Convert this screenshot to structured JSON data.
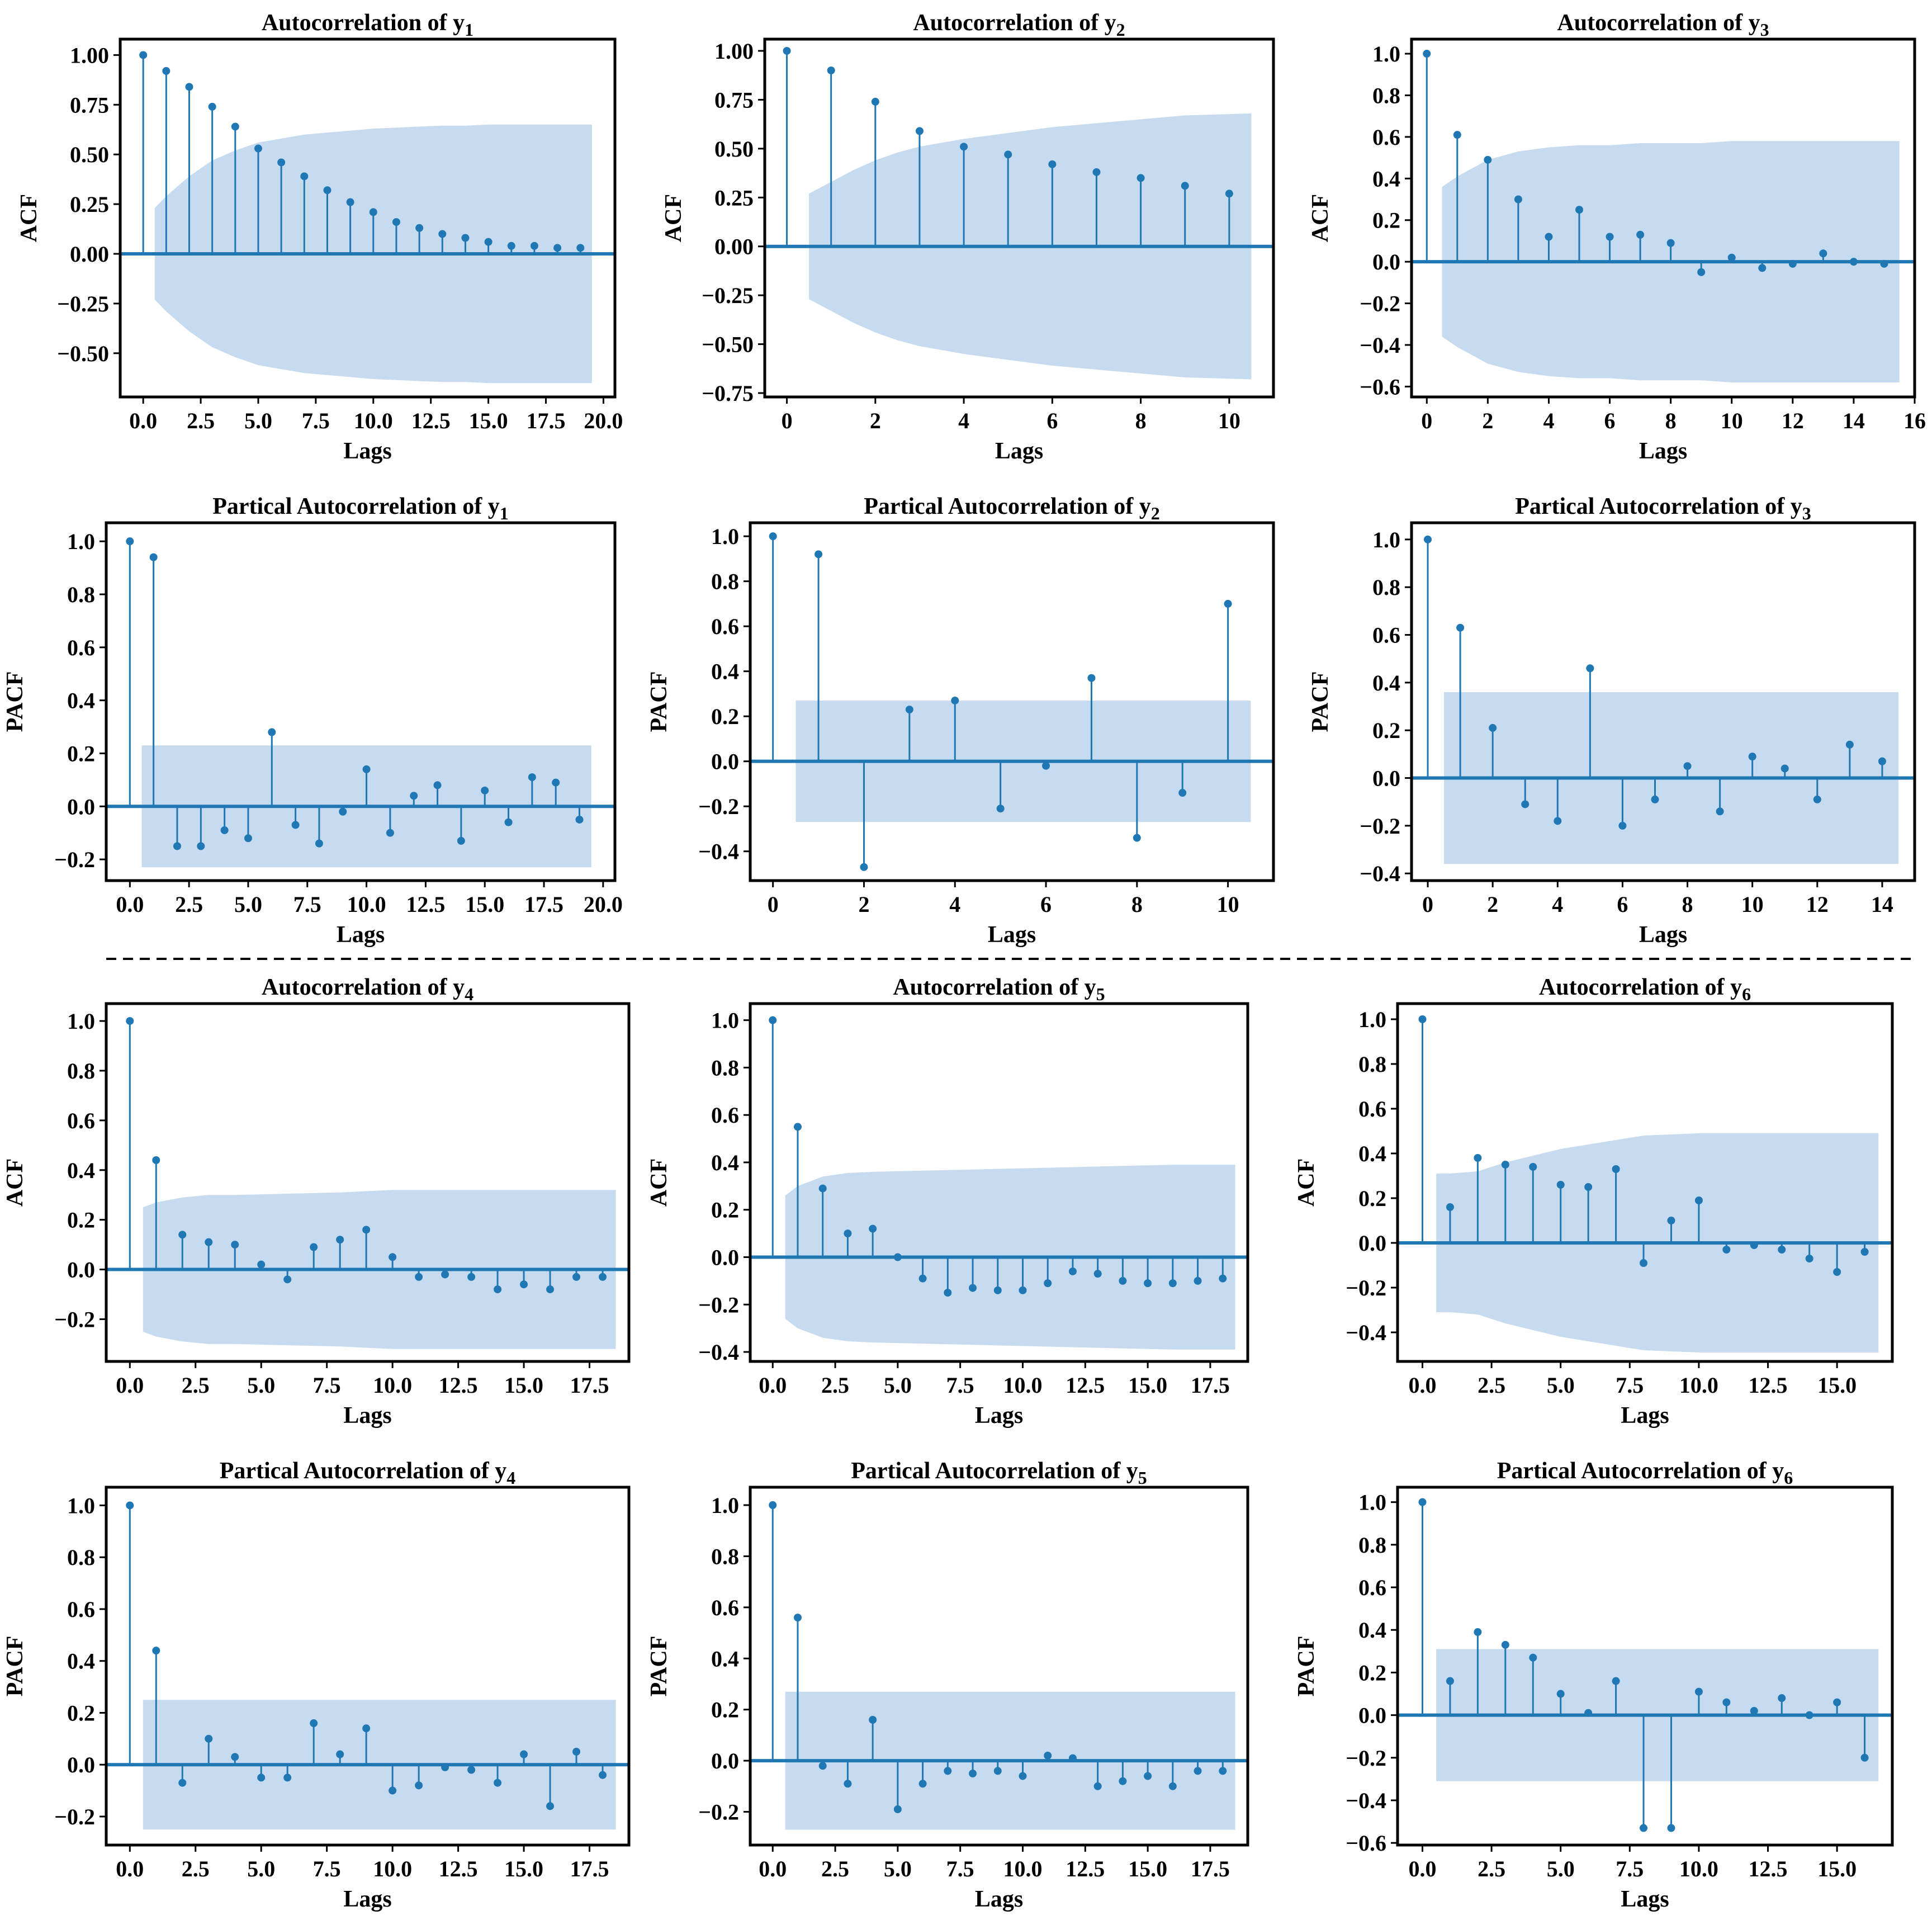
{
  "figure": {
    "separator": "dashed-line",
    "colors": {
      "stem": "#1f77b4",
      "band": "#c6dbef",
      "axis": "#000000"
    }
  },
  "chart_data": [
    {
      "id": "acf1",
      "type": "stem",
      "title": "Autocorrelation of y",
      "subscript": "1",
      "xlabel": "Lags",
      "ylabel": "ACF",
      "x": [
        0,
        1,
        2,
        3,
        4,
        5,
        6,
        7,
        8,
        9,
        10,
        11,
        12,
        13,
        14,
        15,
        16,
        17,
        18,
        19
      ],
      "values": [
        1.0,
        0.92,
        0.84,
        0.74,
        0.64,
        0.53,
        0.46,
        0.39,
        0.32,
        0.26,
        0.21,
        0.16,
        0.13,
        0.1,
        0.08,
        0.06,
        0.04,
        0.04,
        0.03,
        0.03
      ],
      "band_x": [
        0.5,
        1,
        1.5,
        2,
        2.5,
        3,
        4,
        5,
        6,
        7,
        8,
        9,
        10,
        11,
        12,
        13,
        14,
        15,
        16,
        17,
        18,
        19.5
      ],
      "band_upper": [
        0.23,
        0.29,
        0.34,
        0.39,
        0.43,
        0.47,
        0.52,
        0.56,
        0.58,
        0.6,
        0.61,
        0.62,
        0.63,
        0.635,
        0.64,
        0.645,
        0.645,
        0.65,
        0.65,
        0.65,
        0.65,
        0.65
      ],
      "xlim": [
        -1,
        20.5
      ],
      "ylim": [
        -0.72,
        1.08
      ],
      "xticks": [
        0,
        2.5,
        5,
        7.5,
        10,
        12.5,
        15,
        17.5,
        20
      ],
      "xtick_labels": [
        "0.0",
        "2.5",
        "5.0",
        "7.5",
        "10.0",
        "12.5",
        "15.0",
        "17.5",
        "20.0"
      ],
      "yticks": [
        -0.5,
        -0.25,
        0,
        0.25,
        0.5,
        0.75,
        1
      ],
      "ytick_labels": [
        "−0.50",
        "−0.25",
        "0.00",
        "0.25",
        "0.50",
        "0.75",
        "1.00"
      ]
    },
    {
      "id": "acf2",
      "type": "stem",
      "title": "Autocorrelation of y",
      "subscript": "2",
      "xlabel": "Lags",
      "ylabel": "ACF",
      "x": [
        0,
        1,
        2,
        3,
        4,
        5,
        6,
        7,
        8,
        9,
        10
      ],
      "values": [
        1.0,
        0.9,
        0.74,
        0.59,
        0.51,
        0.47,
        0.42,
        0.38,
        0.35,
        0.31,
        0.27
      ],
      "band_x": [
        0.5,
        1,
        1.5,
        2,
        2.5,
        3,
        4,
        5,
        6,
        7,
        8,
        9,
        10.5
      ],
      "band_upper": [
        0.27,
        0.33,
        0.39,
        0.44,
        0.48,
        0.51,
        0.55,
        0.58,
        0.61,
        0.63,
        0.65,
        0.67,
        0.68
      ],
      "xlim": [
        -0.5,
        11
      ],
      "ylim": [
        -0.77,
        1.06
      ],
      "xticks": [
        0,
        2,
        4,
        6,
        8,
        10
      ],
      "xtick_labels": [
        "0",
        "2",
        "4",
        "6",
        "8",
        "10"
      ],
      "yticks": [
        -0.75,
        -0.5,
        -0.25,
        0,
        0.25,
        0.5,
        0.75,
        1
      ],
      "ytick_labels": [
        "−0.75",
        "−0.50",
        "−0.25",
        "0.00",
        "0.25",
        "0.50",
        "0.75",
        "1.00"
      ]
    },
    {
      "id": "acf3",
      "type": "stem",
      "title": "Autocorrelation of y",
      "subscript": "3",
      "xlabel": "Lags",
      "ylabel": "ACF",
      "x": [
        0,
        1,
        2,
        3,
        4,
        5,
        6,
        7,
        8,
        9,
        10,
        11,
        12,
        13,
        14,
        15
      ],
      "values": [
        1.0,
        0.61,
        0.49,
        0.3,
        0.12,
        0.25,
        0.12,
        0.13,
        0.09,
        -0.05,
        0.02,
        -0.03,
        -0.01,
        0.04,
        0.0,
        -0.01
      ],
      "band_x": [
        0.5,
        1,
        2,
        3,
        4,
        5,
        6,
        7,
        8,
        9,
        10,
        11,
        12,
        13,
        14,
        15.5
      ],
      "band_upper": [
        0.36,
        0.41,
        0.49,
        0.53,
        0.55,
        0.56,
        0.56,
        0.57,
        0.57,
        0.57,
        0.58,
        0.58,
        0.58,
        0.58,
        0.58,
        0.58
      ],
      "xlim": [
        -0.5,
        16
      ],
      "ylim": [
        -0.65,
        1.07
      ],
      "xticks": [
        0,
        2,
        4,
        6,
        8,
        10,
        12,
        14,
        16
      ],
      "xtick_labels": [
        "0",
        "2",
        "4",
        "6",
        "8",
        "10",
        "12",
        "14",
        "16"
      ],
      "yticks": [
        -0.6,
        -0.4,
        -0.2,
        0,
        0.2,
        0.4,
        0.6,
        0.8,
        1
      ],
      "ytick_labels": [
        "−0.6",
        "−0.4",
        "−0.2",
        "0.0",
        "0.2",
        "0.4",
        "0.6",
        "0.8",
        "1.0"
      ]
    },
    {
      "id": "pacf1",
      "type": "stem",
      "title": "Partical Autocorrelation of y",
      "subscript": "1",
      "xlabel": "Lags",
      "ylabel": "PACF",
      "x": [
        0,
        1,
        2,
        3,
        4,
        5,
        6,
        7,
        8,
        9,
        10,
        11,
        12,
        13,
        14,
        15,
        16,
        17,
        18,
        19
      ],
      "values": [
        1.0,
        0.94,
        -0.15,
        -0.15,
        -0.09,
        -0.12,
        0.28,
        -0.07,
        -0.14,
        -0.02,
        0.14,
        -0.1,
        0.04,
        0.08,
        -0.13,
        0.06,
        -0.06,
        0.11,
        0.09,
        -0.05
      ],
      "band_x": [
        0.5,
        19.5
      ],
      "band_upper": [
        0.23,
        0.23
      ],
      "xlim": [
        -1,
        20.5
      ],
      "ylim": [
        -0.28,
        1.07
      ],
      "xticks": [
        0,
        2.5,
        5,
        7.5,
        10,
        12.5,
        15,
        17.5,
        20
      ],
      "xtick_labels": [
        "0.0",
        "2.5",
        "5.0",
        "7.5",
        "10.0",
        "12.5",
        "15.0",
        "17.5",
        "20.0"
      ],
      "yticks": [
        -0.2,
        0,
        0.2,
        0.4,
        0.6,
        0.8,
        1
      ],
      "ytick_labels": [
        "−0.2",
        "0.0",
        "0.2",
        "0.4",
        "0.6",
        "0.8",
        "1.0"
      ]
    },
    {
      "id": "pacf2",
      "type": "stem",
      "title": "Partical Autocorrelation of y",
      "subscript": "2",
      "xlabel": "Lags",
      "ylabel": "PACF",
      "x": [
        0,
        1,
        2,
        3,
        4,
        5,
        6,
        7,
        8,
        9,
        10
      ],
      "values": [
        1.0,
        0.92,
        -0.47,
        0.23,
        0.27,
        -0.21,
        -0.02,
        0.37,
        -0.34,
        -0.14,
        0.7
      ],
      "band_x": [
        0.5,
        10.5
      ],
      "band_upper": [
        0.27,
        0.27
      ],
      "xlim": [
        -0.5,
        11
      ],
      "ylim": [
        -0.53,
        1.06
      ],
      "xticks": [
        0,
        2,
        4,
        6,
        8,
        10
      ],
      "xtick_labels": [
        "0",
        "2",
        "4",
        "6",
        "8",
        "10"
      ],
      "yticks": [
        -0.4,
        -0.2,
        0,
        0.2,
        0.4,
        0.6,
        0.8,
        1
      ],
      "ytick_labels": [
        "−0.4",
        "−0.2",
        "0.0",
        "0.2",
        "0.4",
        "0.6",
        "0.8",
        "1.0"
      ]
    },
    {
      "id": "pacf3",
      "type": "stem",
      "title": "Partical Autocorrelation of y",
      "subscript": "3",
      "xlabel": "Lags",
      "ylabel": "PACF",
      "x": [
        0,
        1,
        2,
        3,
        4,
        5,
        6,
        7,
        8,
        9,
        10,
        11,
        12,
        13,
        14
      ],
      "values": [
        1.0,
        0.63,
        0.21,
        -0.11,
        -0.18,
        0.46,
        -0.2,
        -0.09,
        0.05,
        -0.14,
        0.09,
        0.04,
        -0.09,
        0.14,
        0.07
      ],
      "band_x": [
        0.5,
        14.5
      ],
      "band_upper": [
        0.36,
        0.36
      ],
      "xlim": [
        -0.5,
        15
      ],
      "ylim": [
        -0.43,
        1.07
      ],
      "xticks": [
        0,
        2,
        4,
        6,
        8,
        10,
        12,
        14
      ],
      "xtick_labels": [
        "0",
        "2",
        "4",
        "6",
        "8",
        "10",
        "12",
        "14"
      ],
      "yticks": [
        -0.4,
        -0.2,
        0,
        0.2,
        0.4,
        0.6,
        0.8,
        1
      ],
      "ytick_labels": [
        "−0.4",
        "−0.2",
        "0.0",
        "0.2",
        "0.4",
        "0.6",
        "0.8",
        "1.0"
      ]
    },
    {
      "id": "acf4",
      "type": "stem",
      "title": "Autocorrelation of y",
      "subscript": "4",
      "xlabel": "Lags",
      "ylabel": "ACF",
      "x": [
        0,
        1,
        2,
        3,
        4,
        5,
        6,
        7,
        8,
        9,
        10,
        11,
        12,
        13,
        14,
        15,
        16,
        17,
        18
      ],
      "values": [
        1.0,
        0.44,
        0.14,
        0.11,
        0.1,
        0.02,
        -0.04,
        0.09,
        0.12,
        0.16,
        0.05,
        -0.03,
        -0.02,
        -0.03,
        -0.08,
        -0.06,
        -0.08,
        -0.03,
        -0.03
      ],
      "band_x": [
        0.5,
        1,
        2,
        3,
        4,
        6,
        8,
        10,
        12,
        14,
        16,
        18.5
      ],
      "band_upper": [
        0.25,
        0.27,
        0.29,
        0.3,
        0.3,
        0.305,
        0.31,
        0.32,
        0.32,
        0.32,
        0.32,
        0.32
      ],
      "xlim": [
        -0.9,
        19
      ],
      "ylim": [
        -0.37,
        1.07
      ],
      "xticks": [
        0,
        2.5,
        5,
        7.5,
        10,
        12.5,
        15,
        17.5
      ],
      "xtick_labels": [
        "0.0",
        "2.5",
        "5.0",
        "7.5",
        "10.0",
        "12.5",
        "15.0",
        "17.5"
      ],
      "yticks": [
        -0.2,
        0,
        0.2,
        0.4,
        0.6,
        0.8,
        1
      ],
      "ytick_labels": [
        "−0.2",
        "0.0",
        "0.2",
        "0.4",
        "0.6",
        "0.8",
        "1.0"
      ]
    },
    {
      "id": "acf5",
      "type": "stem",
      "title": "Autocorrelation of y",
      "subscript": "5",
      "xlabel": "Lags",
      "ylabel": "ACF",
      "x": [
        0,
        1,
        2,
        3,
        4,
        5,
        6,
        7,
        8,
        9,
        10,
        11,
        12,
        13,
        14,
        15,
        16,
        17,
        18
      ],
      "values": [
        1.0,
        0.55,
        0.29,
        0.1,
        0.12,
        0.0,
        -0.09,
        -0.15,
        -0.13,
        -0.14,
        -0.14,
        -0.11,
        -0.06,
        -0.07,
        -0.1,
        -0.11,
        -0.11,
        -0.1,
        -0.09
      ],
      "band_x": [
        0.5,
        1,
        2,
        3,
        4,
        6,
        8,
        10,
        12,
        14,
        16,
        18.5
      ],
      "band_upper": [
        0.26,
        0.3,
        0.34,
        0.355,
        0.36,
        0.365,
        0.37,
        0.375,
        0.38,
        0.385,
        0.39,
        0.39
      ],
      "xlim": [
        -0.9,
        19
      ],
      "ylim": [
        -0.44,
        1.07
      ],
      "xticks": [
        0,
        2.5,
        5,
        7.5,
        10,
        12.5,
        15,
        17.5
      ],
      "xtick_labels": [
        "0.0",
        "2.5",
        "5.0",
        "7.5",
        "10.0",
        "12.5",
        "15.0",
        "17.5"
      ],
      "yticks": [
        -0.4,
        -0.2,
        0,
        0.2,
        0.4,
        0.6,
        0.8,
        1
      ],
      "ytick_labels": [
        "−0.4",
        "−0.2",
        "0.0",
        "0.2",
        "0.4",
        "0.6",
        "0.8",
        "1.0"
      ]
    },
    {
      "id": "acf6",
      "type": "stem",
      "title": "Autocorrelation of y",
      "subscript": "6",
      "xlabel": "Lags",
      "ylabel": "ACF",
      "x": [
        0,
        1,
        2,
        3,
        4,
        5,
        6,
        7,
        8,
        9,
        10,
        11,
        12,
        13,
        14,
        15,
        16
      ],
      "values": [
        1.0,
        0.16,
        0.38,
        0.35,
        0.34,
        0.26,
        0.25,
        0.33,
        -0.09,
        0.1,
        0.19,
        -0.03,
        -0.01,
        -0.03,
        -0.07,
        -0.13,
        -0.04
      ],
      "band_x": [
        0.5,
        1,
        2,
        3,
        4,
        5,
        6,
        7,
        8,
        10,
        12,
        14,
        16.5
      ],
      "band_upper": [
        0.31,
        0.31,
        0.32,
        0.36,
        0.39,
        0.42,
        0.44,
        0.46,
        0.48,
        0.49,
        0.49,
        0.49,
        0.49
      ],
      "xlim": [
        -0.9,
        17
      ],
      "ylim": [
        -0.53,
        1.07
      ],
      "xticks": [
        0,
        2.5,
        5,
        7.5,
        10,
        12.5,
        15
      ],
      "xtick_labels": [
        "0.0",
        "2.5",
        "5.0",
        "7.5",
        "10.0",
        "12.5",
        "15.0"
      ],
      "yticks": [
        -0.4,
        -0.2,
        0,
        0.2,
        0.4,
        0.6,
        0.8,
        1
      ],
      "ytick_labels": [
        "−0.4",
        "−0.2",
        "0.0",
        "0.2",
        "0.4",
        "0.6",
        "0.8",
        "1.0"
      ]
    },
    {
      "id": "pacf4",
      "type": "stem",
      "title": "Partical Autocorrelation of y",
      "subscript": "4",
      "xlabel": "Lags",
      "ylabel": "PACF",
      "x": [
        0,
        1,
        2,
        3,
        4,
        5,
        6,
        7,
        8,
        9,
        10,
        11,
        12,
        13,
        14,
        15,
        16,
        17,
        18
      ],
      "values": [
        1.0,
        0.44,
        -0.07,
        0.1,
        0.03,
        -0.05,
        -0.05,
        0.16,
        0.04,
        0.14,
        -0.1,
        -0.08,
        -0.01,
        -0.02,
        -0.07,
        0.04,
        -0.16,
        0.05,
        -0.04
      ],
      "band_x": [
        0.5,
        18.5
      ],
      "band_upper": [
        0.25,
        0.25
      ],
      "xlim": [
        -0.9,
        19
      ],
      "ylim": [
        -0.31,
        1.07
      ],
      "xticks": [
        0,
        2.5,
        5,
        7.5,
        10,
        12.5,
        15,
        17.5
      ],
      "xtick_labels": [
        "0.0",
        "2.5",
        "5.0",
        "7.5",
        "10.0",
        "12.5",
        "15.0",
        "17.5"
      ],
      "yticks": [
        -0.2,
        0,
        0.2,
        0.4,
        0.6,
        0.8,
        1
      ],
      "ytick_labels": [
        "−0.2",
        "0.0",
        "0.2",
        "0.4",
        "0.6",
        "0.8",
        "1.0"
      ]
    },
    {
      "id": "pacf5",
      "type": "stem",
      "title": "Partical Autocorrelation of y",
      "subscript": "5",
      "xlabel": "Lags",
      "ylabel": "PACF",
      "x": [
        0,
        1,
        2,
        3,
        4,
        5,
        6,
        7,
        8,
        9,
        10,
        11,
        12,
        13,
        14,
        15,
        16,
        17,
        18
      ],
      "values": [
        1.0,
        0.56,
        -0.02,
        -0.09,
        0.16,
        -0.19,
        -0.09,
        -0.04,
        -0.05,
        -0.04,
        -0.06,
        0.02,
        0.01,
        -0.1,
        -0.08,
        -0.06,
        -0.1,
        -0.04,
        -0.04
      ],
      "band_x": [
        0.5,
        18.5
      ],
      "band_upper": [
        0.27,
        0.27
      ],
      "xlim": [
        -0.9,
        19
      ],
      "ylim": [
        -0.33,
        1.07
      ],
      "xticks": [
        0,
        2.5,
        5,
        7.5,
        10,
        12.5,
        15,
        17.5
      ],
      "xtick_labels": [
        "0.0",
        "2.5",
        "5.0",
        "7.5",
        "10.0",
        "12.5",
        "15.0",
        "17.5"
      ],
      "yticks": [
        -0.2,
        0,
        0.2,
        0.4,
        0.6,
        0.8,
        1
      ],
      "ytick_labels": [
        "−0.2",
        "0.0",
        "0.2",
        "0.4",
        "0.6",
        "0.8",
        "1.0"
      ]
    },
    {
      "id": "pacf6",
      "type": "stem",
      "title": "Partical Autocorrelation of y",
      "subscript": "6",
      "xlabel": "Lags",
      "ylabel": "PACF",
      "x": [
        0,
        1,
        2,
        3,
        4,
        5,
        6,
        7,
        8,
        9,
        10,
        11,
        12,
        13,
        14,
        15,
        16
      ],
      "values": [
        1.0,
        0.16,
        0.39,
        0.33,
        0.27,
        0.1,
        0.01,
        0.16,
        -0.53,
        -0.53,
        0.11,
        0.06,
        0.02,
        0.08,
        0.0,
        0.06,
        -0.2
      ],
      "band_x": [
        0.5,
        16.5
      ],
      "band_upper": [
        0.31,
        0.31
      ],
      "xlim": [
        -0.9,
        17
      ],
      "ylim": [
        -0.61,
        1.07
      ],
      "xticks": [
        0,
        2.5,
        5,
        7.5,
        10,
        12.5,
        15
      ],
      "xtick_labels": [
        "0.0",
        "2.5",
        "5.0",
        "7.5",
        "10.0",
        "12.5",
        "15.0"
      ],
      "yticks": [
        -0.6,
        -0.4,
        -0.2,
        0,
        0.2,
        0.4,
        0.6,
        0.8,
        1
      ],
      "ytick_labels": [
        "−0.6",
        "−0.4",
        "−0.2",
        "0.0",
        "0.2",
        "0.4",
        "0.6",
        "0.8",
        "1.0"
      ]
    }
  ]
}
